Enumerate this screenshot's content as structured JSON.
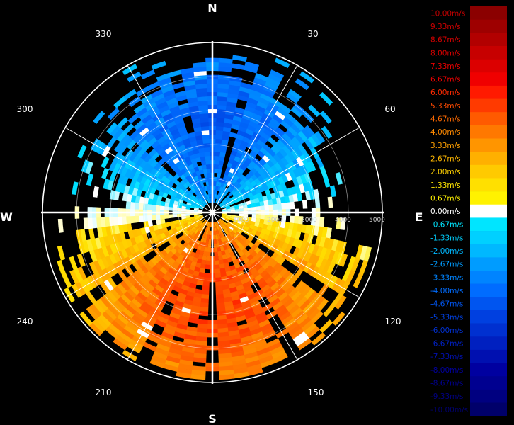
{
  "chart_data": {
    "type": "heatmap",
    "projection": "polar",
    "direction": "clockwise from north",
    "cardinals": [
      "N",
      "E",
      "S",
      "W"
    ],
    "angle_ticks": [
      "30",
      "60",
      "120",
      "150",
      "210",
      "240",
      "300",
      "330"
    ],
    "range_ticks": [
      "1000",
      "2000",
      "3000",
      "4000",
      "5000"
    ],
    "rlim": [
      0,
      5000
    ],
    "grid": true,
    "legend_position": "right",
    "colorbar": {
      "labels": [
        "10.00m/s",
        "9.33m/s",
        "8.67m/s",
        "8.00m/s",
        "7.33m/s",
        "6.67m/s",
        "6.00m/s",
        "5.33m/s",
        "4.67m/s",
        "4.00m/s",
        "3.33m/s",
        "2.67m/s",
        "2.00m/s",
        "1.33m/s",
        "0.67m/s",
        "0.00m/s",
        "-0.67m/s",
        "-1.33m/s",
        "-2.00m/s",
        "-2.67m/s",
        "-3.33m/s",
        "-4.00m/s",
        "-4.67m/s",
        "-5.33m/s",
        "-6.00m/s",
        "-6.67m/s",
        "-7.33m/s",
        "-8.00m/s",
        "-8.67m/s",
        "-9.33m/s",
        "-10.00m/s"
      ],
      "colors": [
        "#8b0000",
        "#9e0000",
        "#b20000",
        "#c70000",
        "#dc0000",
        "#f00000",
        "#ff1a00",
        "#ff3a00",
        "#ff5a00",
        "#ff7800",
        "#ff9500",
        "#ffb000",
        "#ffca00",
        "#ffe000",
        "#fff200",
        "#ffffff",
        "#00e5ff",
        "#00d0ff",
        "#00b8ff",
        "#009cff",
        "#0084ff",
        "#006cff",
        "#0055f0",
        "#0040e0",
        "#0030d0",
        "#0020c0",
        "#0010b0",
        "#0000a0",
        "#000090",
        "#000080",
        "#00006a"
      ],
      "text_colors": [
        "#c40000",
        "#cc0000",
        "#d40000",
        "#dc0000",
        "#e80000",
        "#f00000",
        "#ff2a00",
        "#ff4a00",
        "#ff6a00",
        "#ff8a00",
        "#ffa000",
        "#ffb800",
        "#ffd000",
        "#ffe400",
        "#fff200",
        "#ffffff",
        "#00e5ff",
        "#00d0ff",
        "#00b8ff",
        "#009cff",
        "#0084ff",
        "#006cff",
        "#0055f0",
        "#0040e0",
        "#0030d0",
        "#0020c0",
        "#0010b0",
        "#0000a0",
        "#000090",
        "#000080",
        "#00006a"
      ]
    },
    "velocity_field": {
      "unit": "m/s",
      "approach_side": "north (azimuth 270-90 via 0), negative values (blue)",
      "recede_side": "south (azimuth 90-270 via 180), positive values (orange/red)",
      "peak_approach": -5.0,
      "peak_recede": 6.0,
      "coverage_max_range": 4800
    }
  }
}
